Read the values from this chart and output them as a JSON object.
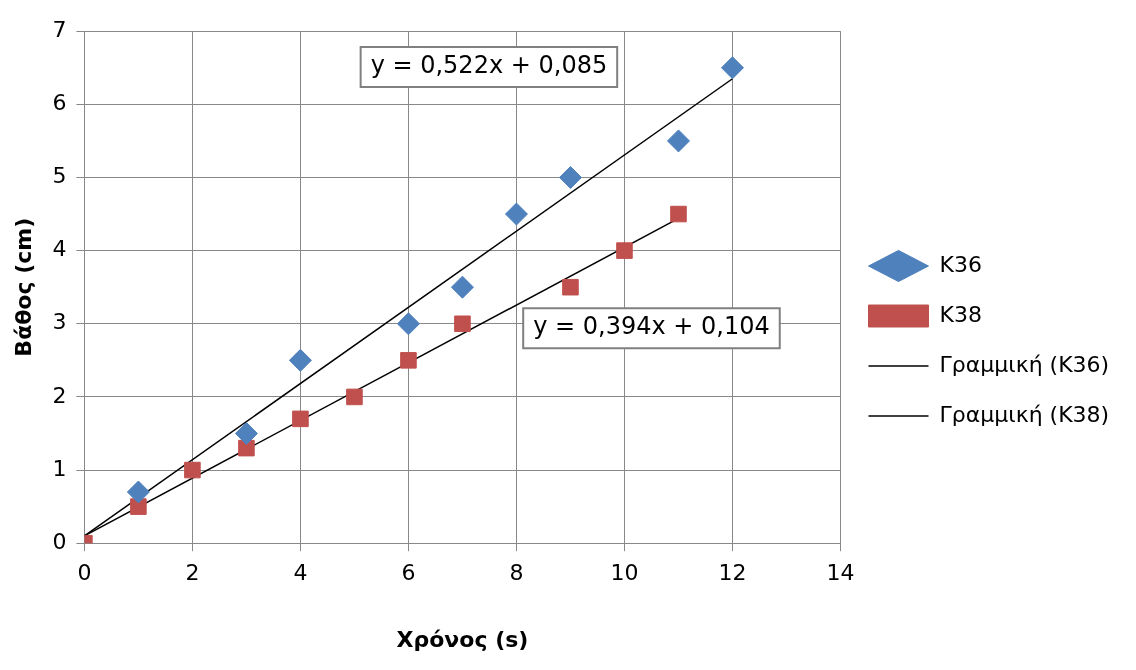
{
  "chart_data": {
    "type": "scatter",
    "xlabel": "Χρόνος (s)",
    "ylabel": "Βάθος (cm)",
    "xlim": [
      0,
      14
    ],
    "xticks": [
      0,
      2,
      4,
      6,
      8,
      10,
      12,
      14
    ],
    "ylim": [
      0,
      7
    ],
    "yticks": [
      0,
      1,
      2,
      3,
      4,
      5,
      6,
      7
    ],
    "grid": true,
    "legend": "right",
    "series": [
      {
        "name": "Κ36",
        "color": "#4f81bd",
        "marker": "diamond",
        "x": [
          1,
          3,
          4,
          6,
          7,
          8,
          9,
          11,
          12
        ],
        "values": [
          0.7,
          1.5,
          2.5,
          3,
          3.5,
          4.5,
          5,
          5.5,
          6.5
        ]
      },
      {
        "name": "Κ38",
        "color": "#c0504d",
        "marker": "square",
        "x": [
          0,
          1,
          2,
          3,
          4,
          5,
          6,
          7,
          9,
          10,
          11
        ],
        "values": [
          0,
          0.5,
          1,
          1.3,
          1.7,
          2,
          2.5,
          3,
          3.5,
          4,
          4.5
        ]
      },
      {
        "name": "Γραμμική (Κ36)",
        "type": "line",
        "color": "#000000",
        "marker": "none",
        "x": [
          0,
          12
        ],
        "values": [
          0.1,
          6.35
        ]
      },
      {
        "name": "Γραμμική (Κ38)",
        "type": "line",
        "color": "#000000",
        "marker": "none",
        "x": [
          0,
          11
        ],
        "values": [
          0.1,
          4.44
        ]
      }
    ],
    "annotations": [
      "y = 0,522x + 0,085",
      "y = 0,394x + 0,104"
    ]
  }
}
